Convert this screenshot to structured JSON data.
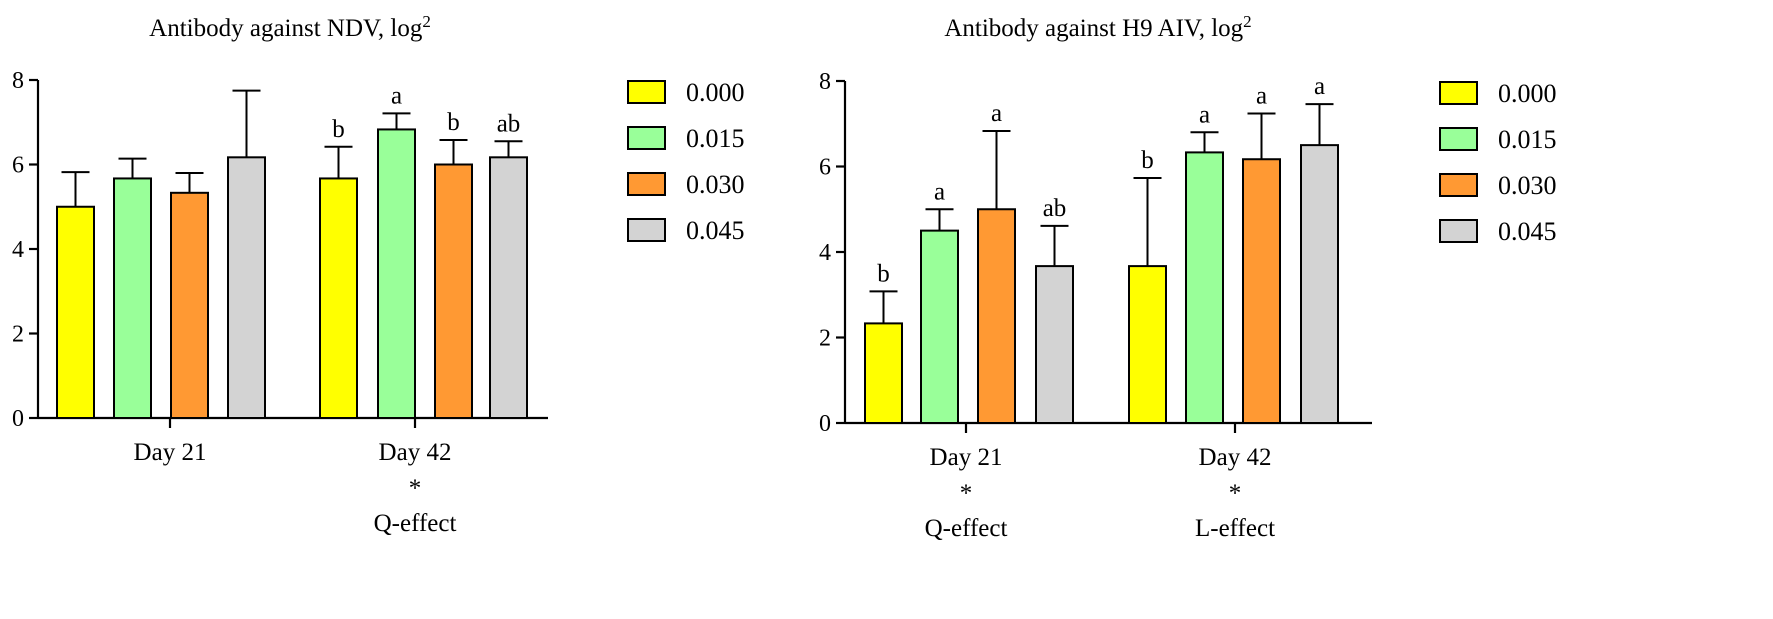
{
  "chart_data": [
    {
      "type": "bar",
      "title": "Antibody against NDV, log",
      "title_sup": "2",
      "categories": [
        "Day 21",
        "Day 42"
      ],
      "category_notes": [
        [],
        [
          "*",
          "Q-effect"
        ]
      ],
      "ylim": [
        0,
        8
      ],
      "yticks": [
        0,
        2,
        4,
        6,
        8
      ],
      "series": [
        {
          "name": "0.000",
          "color": "#ffff00",
          "values": [
            5.0,
            5.67
          ],
          "errors": [
            0.82,
            0.75
          ],
          "letters": [
            "",
            "b"
          ]
        },
        {
          "name": "0.015",
          "color": "#99ff99",
          "values": [
            5.67,
            6.83
          ],
          "errors": [
            0.47,
            0.38
          ],
          "letters": [
            "",
            "a"
          ]
        },
        {
          "name": "0.030",
          "color": "#ff9933",
          "values": [
            5.33,
            6.0
          ],
          "errors": [
            0.47,
            0.58
          ],
          "letters": [
            "",
            "b"
          ]
        },
        {
          "name": "0.045",
          "color": "#d3d3d3",
          "values": [
            6.17,
            6.17
          ],
          "errors": [
            1.58,
            0.38
          ],
          "letters": [
            "",
            "ab"
          ]
        }
      ]
    },
    {
      "type": "bar",
      "title": "Antibody against H9 AIV, log",
      "title_sup": "2",
      "categories": [
        "Day 21",
        "Day 42"
      ],
      "category_notes": [
        [
          "*",
          "Q-effect"
        ],
        [
          "*",
          "L-effect"
        ]
      ],
      "ylim": [
        0,
        8
      ],
      "yticks": [
        0,
        2,
        4,
        6,
        8
      ],
      "series": [
        {
          "name": "0.000",
          "color": "#ffff00",
          "values": [
            2.33,
            3.67
          ],
          "errors": [
            0.75,
            2.06
          ],
          "letters": [
            "b",
            "b"
          ]
        },
        {
          "name": "0.015",
          "color": "#99ff99",
          "values": [
            4.5,
            6.33
          ],
          "errors": [
            0.5,
            0.47
          ],
          "letters": [
            "a",
            "a"
          ]
        },
        {
          "name": "0.030",
          "color": "#ff9933",
          "values": [
            5.0,
            6.17
          ],
          "errors": [
            1.83,
            1.07
          ],
          "letters": [
            "a",
            "a"
          ]
        },
        {
          "name": "0.045",
          "color": "#d3d3d3",
          "values": [
            3.67,
            6.5
          ],
          "errors": [
            0.94,
            0.96
          ],
          "letters": [
            "ab",
            "a"
          ]
        }
      ]
    }
  ]
}
